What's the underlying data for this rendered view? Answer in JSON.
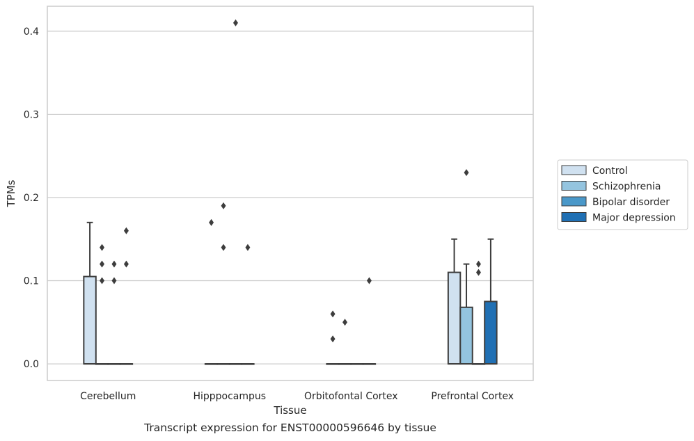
{
  "caption": "Transcript expression for ENST00000596646 by tissue",
  "chart_data": {
    "type": "box",
    "xlabel": "Tissue",
    "ylabel": "TPMs",
    "ylim": [
      -0.02,
      0.43
    ],
    "yticks": [
      0.0,
      0.1,
      0.2,
      0.3,
      0.4
    ],
    "ytick_labels": [
      "0.0",
      "0.1",
      "0.2",
      "0.3",
      "0.4"
    ],
    "grid": "horizontal",
    "legend_position": "right",
    "categories": [
      "Cerebellum",
      "Hipppocampus",
      "Orbitofontal Cortex",
      "Prefrontal Cortex"
    ],
    "series": [
      {
        "name": "Control",
        "color": "#d0e1f0",
        "boxes": [
          {
            "q1": 0.0,
            "median": 0.0,
            "q3": 0.105,
            "whisker_low": 0.0,
            "whisker_high": 0.17,
            "outliers": []
          },
          {
            "q1": 0.0,
            "median": 0.0,
            "q3": 0.0,
            "whisker_low": 0.0,
            "whisker_high": 0.0,
            "outliers": [
              0.17
            ]
          },
          {
            "q1": 0.0,
            "median": 0.0,
            "q3": 0.0,
            "whisker_low": 0.0,
            "whisker_high": 0.0,
            "outliers": [
              0.03,
              0.06
            ]
          },
          {
            "q1": 0.0,
            "median": 0.0,
            "q3": 0.11,
            "whisker_low": 0.0,
            "whisker_high": 0.15,
            "outliers": []
          }
        ]
      },
      {
        "name": "Schizophrenia",
        "color": "#94c4df",
        "boxes": [
          {
            "q1": 0.0,
            "median": 0.0,
            "q3": 0.0,
            "whisker_low": 0.0,
            "whisker_high": 0.0,
            "outliers": [
              0.1,
              0.12,
              0.14
            ]
          },
          {
            "q1": 0.0,
            "median": 0.0,
            "q3": 0.0,
            "whisker_low": 0.0,
            "whisker_high": 0.0,
            "outliers": [
              0.14,
              0.19
            ]
          },
          {
            "q1": 0.0,
            "median": 0.0,
            "q3": 0.0,
            "whisker_low": 0.0,
            "whisker_high": 0.0,
            "outliers": [
              0.05
            ]
          },
          {
            "q1": 0.0,
            "median": 0.0,
            "q3": 0.068,
            "whisker_low": 0.0,
            "whisker_high": 0.12,
            "outliers": [
              0.23
            ]
          }
        ]
      },
      {
        "name": "Bipolar disorder",
        "color": "#4a98c9",
        "boxes": [
          {
            "q1": 0.0,
            "median": 0.0,
            "q3": 0.0,
            "whisker_low": 0.0,
            "whisker_high": 0.0,
            "outliers": [
              0.1,
              0.12
            ]
          },
          {
            "q1": 0.0,
            "median": 0.0,
            "q3": 0.0,
            "whisker_low": 0.0,
            "whisker_high": 0.0,
            "outliers": [
              0.41
            ]
          },
          {
            "q1": 0.0,
            "median": 0.0,
            "q3": 0.0,
            "whisker_low": 0.0,
            "whisker_high": 0.0,
            "outliers": []
          },
          {
            "q1": 0.0,
            "median": 0.0,
            "q3": 0.0,
            "whisker_low": 0.0,
            "whisker_high": 0.0,
            "outliers": [
              0.11,
              0.12
            ]
          }
        ]
      },
      {
        "name": "Major depression",
        "color": "#2070b4",
        "boxes": [
          {
            "q1": 0.0,
            "median": 0.0,
            "q3": 0.0,
            "whisker_low": 0.0,
            "whisker_high": 0.0,
            "outliers": [
              0.12,
              0.16
            ]
          },
          {
            "q1": 0.0,
            "median": 0.0,
            "q3": 0.0,
            "whisker_low": 0.0,
            "whisker_high": 0.0,
            "outliers": [
              0.14
            ]
          },
          {
            "q1": 0.0,
            "median": 0.0,
            "q3": 0.0,
            "whisker_low": 0.0,
            "whisker_high": 0.0,
            "outliers": [
              0.1
            ]
          },
          {
            "q1": 0.0,
            "median": 0.0,
            "q3": 0.075,
            "whisker_low": 0.0,
            "whisker_high": 0.15,
            "outliers": []
          }
        ]
      }
    ]
  }
}
